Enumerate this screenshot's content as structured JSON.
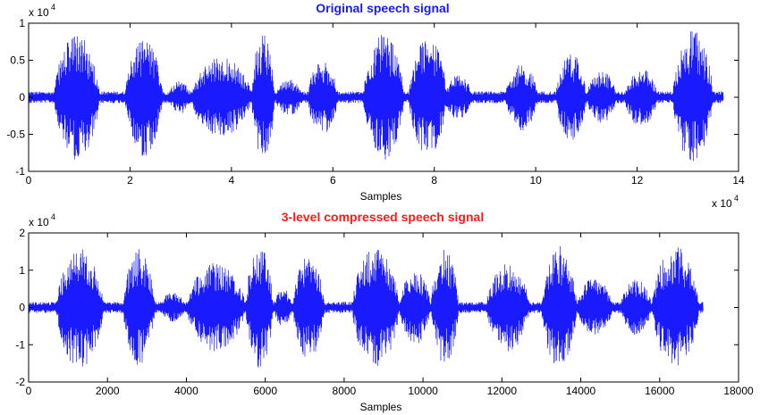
{
  "chart_data": [
    {
      "type": "line",
      "title": "Original speech signal",
      "title_color": "#1a1aff",
      "xlabel": "Samples",
      "ylabel": "",
      "x_scale_label": "x 10",
      "x_scale_exponent": "4",
      "y_scale_label": "x 10",
      "y_scale_exponent": "4",
      "xlim": [
        0,
        140000
      ],
      "ylim": [
        -10000,
        10000
      ],
      "xticks": [
        0,
        20000,
        40000,
        60000,
        80000,
        100000,
        120000,
        140000
      ],
      "xtick_labels": [
        "0",
        "2",
        "4",
        "6",
        "8",
        "10",
        "12",
        "14"
      ],
      "yticks": [
        -10000,
        -5000,
        0,
        5000,
        10000
      ],
      "ytick_labels": [
        "-1",
        "-0.5",
        "0",
        "0.5",
        "1"
      ],
      "grid": false,
      "series": [
        {
          "color": "#1a1aff",
          "x_end": 137000,
          "noise_amplitude": 800,
          "bursts": [
            {
              "start": 5000,
              "end": 14000,
              "peak": 8500
            },
            {
              "start": 19000,
              "end": 26500,
              "peak": 8000
            },
            {
              "start": 27500,
              "end": 32000,
              "peak": 2300
            },
            {
              "start": 32000,
              "end": 44000,
              "peak": 5500
            },
            {
              "start": 44000,
              "end": 48500,
              "peak": 9000
            },
            {
              "start": 48500,
              "end": 54000,
              "peak": 2500
            },
            {
              "start": 55000,
              "end": 61000,
              "peak": 5000
            },
            {
              "start": 66000,
              "end": 74000,
              "peak": 8500
            },
            {
              "start": 75000,
              "end": 82500,
              "peak": 8000
            },
            {
              "start": 82000,
              "end": 87500,
              "peak": 3000
            },
            {
              "start": 94000,
              "end": 100500,
              "peak": 4500
            },
            {
              "start": 104000,
              "end": 110000,
              "peak": 6000
            },
            {
              "start": 110000,
              "end": 116000,
              "peak": 3500
            },
            {
              "start": 117500,
              "end": 124000,
              "peak": 4000
            },
            {
              "start": 127000,
              "end": 135000,
              "peak": 9000
            }
          ]
        }
      ]
    },
    {
      "type": "line",
      "title": "3-level compressed speech signal",
      "title_color": "#ff1a1a",
      "xlabel": "Samples",
      "ylabel": "",
      "y_scale_label": "x 10",
      "y_scale_exponent": "4",
      "xlim": [
        0,
        18000
      ],
      "ylim": [
        -20000,
        20000
      ],
      "xticks": [
        0,
        2000,
        4000,
        6000,
        8000,
        10000,
        12000,
        14000,
        16000,
        18000
      ],
      "xtick_labels": [
        "0",
        "2000",
        "4000",
        "6000",
        "8000",
        "10000",
        "12000",
        "14000",
        "16000",
        "18000"
      ],
      "yticks": [
        -20000,
        -10000,
        0,
        10000,
        20000
      ],
      "ytick_labels": [
        "-2",
        "-1",
        "0",
        "1",
        "2"
      ],
      "grid": false,
      "series": [
        {
          "color": "#1a1aff",
          "x_end": 17100,
          "noise_amplitude": 1500,
          "bursts": [
            {
              "start": 700,
              "end": 1900,
              "peak": 16500
            },
            {
              "start": 2400,
              "end": 3200,
              "peak": 16000
            },
            {
              "start": 3300,
              "end": 4000,
              "peak": 4000
            },
            {
              "start": 4000,
              "end": 5500,
              "peak": 12000
            },
            {
              "start": 5500,
              "end": 6200,
              "peak": 16500
            },
            {
              "start": 6200,
              "end": 6700,
              "peak": 5000
            },
            {
              "start": 6700,
              "end": 7500,
              "peak": 14000
            },
            {
              "start": 8200,
              "end": 9400,
              "peak": 16500
            },
            {
              "start": 9400,
              "end": 10200,
              "peak": 10000
            },
            {
              "start": 10200,
              "end": 10900,
              "peak": 16000
            },
            {
              "start": 11600,
              "end": 12700,
              "peak": 12000
            },
            {
              "start": 13000,
              "end": 13900,
              "peak": 16500
            },
            {
              "start": 13900,
              "end": 14800,
              "peak": 8000
            },
            {
              "start": 15000,
              "end": 15800,
              "peak": 7500
            },
            {
              "start": 15800,
              "end": 17000,
              "peak": 16500
            }
          ]
        }
      ]
    }
  ]
}
